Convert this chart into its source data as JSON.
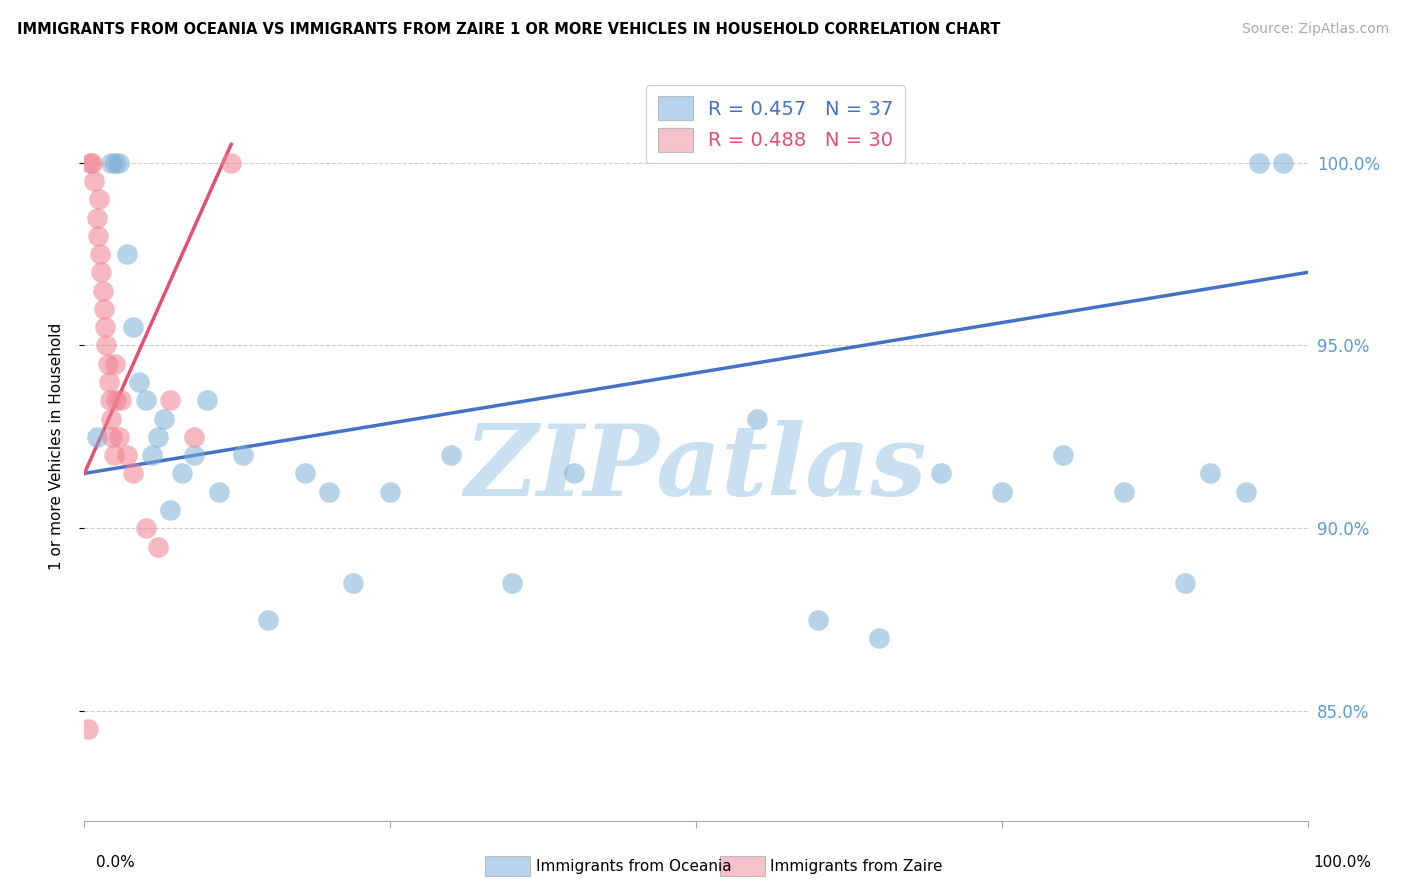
{
  "title": "IMMIGRANTS FROM OCEANIA VS IMMIGRANTS FROM ZAIRE 1 OR MORE VEHICLES IN HOUSEHOLD CORRELATION CHART",
  "source": "Source: ZipAtlas.com",
  "ylabel": "1 or more Vehicles in Household",
  "y_ticks": [
    85.0,
    90.0,
    95.0,
    100.0
  ],
  "x_lim": [
    0.0,
    100.0
  ],
  "y_lim": [
    82.0,
    102.5
  ],
  "legend1_label": "R = 0.457   N = 37",
  "legend2_label": "R = 0.488   N = 30",
  "legend1_color": "#b8d4ed",
  "legend2_color": "#f5c2cb",
  "blue_scatter_color": "#7bafd4",
  "pink_scatter_color": "#f08090",
  "trendline_blue": "#4472c4",
  "trendline_pink": "#e05070",
  "background_color": "#ffffff",
  "grid_color": "#cccccc",
  "oceania_x": [
    1.0,
    2.2,
    2.5,
    2.8,
    3.5,
    4.0,
    4.5,
    5.0,
    5.5,
    6.0,
    6.5,
    7.0,
    8.0,
    9.0,
    10.0,
    11.0,
    13.0,
    15.0,
    18.0,
    20.0,
    22.0,
    25.0,
    30.0,
    35.0,
    40.0,
    55.0,
    60.0,
    65.0,
    70.0,
    75.0,
    80.0,
    85.0,
    90.0,
    92.0,
    95.0,
    96.0,
    98.0
  ],
  "oceania_y": [
    92.5,
    100.0,
    100.0,
    100.0,
    97.5,
    95.5,
    94.0,
    93.5,
    92.0,
    92.5,
    93.0,
    90.5,
    91.5,
    92.0,
    93.5,
    91.0,
    92.0,
    87.5,
    91.5,
    91.0,
    88.5,
    91.0,
    92.0,
    88.5,
    91.5,
    93.0,
    87.5,
    87.0,
    91.5,
    91.0,
    92.0,
    91.0,
    88.5,
    91.5,
    91.0,
    100.0,
    100.0
  ],
  "zaire_x": [
    0.3,
    0.5,
    0.6,
    0.8,
    1.0,
    1.1,
    1.2,
    1.3,
    1.4,
    1.5,
    1.6,
    1.7,
    1.8,
    1.9,
    2.0,
    2.1,
    2.2,
    2.3,
    2.4,
    2.5,
    2.6,
    2.8,
    3.0,
    3.5,
    4.0,
    5.0,
    6.0,
    7.0,
    9.0,
    12.0
  ],
  "zaire_y": [
    84.5,
    100.0,
    100.0,
    99.5,
    98.5,
    98.0,
    99.0,
    97.5,
    97.0,
    96.5,
    96.0,
    95.5,
    95.0,
    94.5,
    94.0,
    93.5,
    93.0,
    92.5,
    92.0,
    94.5,
    93.5,
    92.5,
    93.5,
    92.0,
    91.5,
    90.0,
    89.5,
    93.5,
    92.5,
    100.0
  ],
  "blue_trend_x": [
    0.0,
    100.0
  ],
  "blue_trend_y": [
    91.5,
    97.0
  ],
  "pink_trend_x": [
    0.0,
    12.0
  ],
  "pink_trend_y": [
    91.5,
    100.5
  ],
  "watermark_text": "ZIPatlas",
  "watermark_color": "#c8e0f0",
  "legend_text_blue": "R = 0.457   N = 37",
  "legend_text_pink": "R = 0.488   N = 30"
}
